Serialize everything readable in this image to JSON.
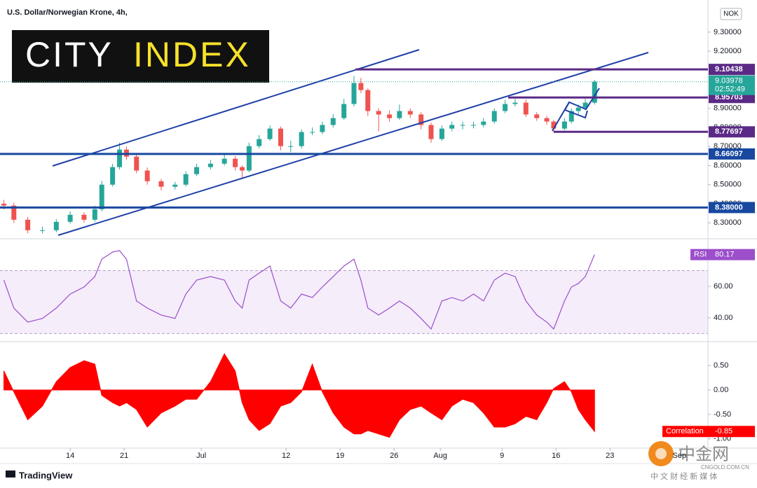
{
  "chart_data": [
    {
      "type": "candlestick",
      "title": "U.S. Dollar/Norwegian Krone, 4h,",
      "currency": "NOK",
      "x": [
        -8.6,
        -7.3,
        -5.5,
        -3.6,
        -1.8,
        0,
        1.8,
        3.2,
        4.1,
        5.5,
        6.4,
        7.3,
        8.6,
        10,
        11.8,
        13.6,
        15,
        16.4,
        18.2,
        20,
        21.4,
        22.3,
        23.2,
        24.5,
        25.9,
        27.3,
        28.6,
        30,
        31.4,
        32.7,
        34.1,
        35.5,
        36.8,
        37.7,
        38.6,
        40,
        41.4,
        42.7,
        44.1,
        45.5,
        46.8,
        48.2,
        49.5,
        50.9,
        52.3,
        53.6,
        55,
        56.4,
        57.7,
        59.1,
        60.5,
        61.8,
        62.7,
        64.1,
        65,
        65.9,
        66.8,
        68
      ],
      "open": [
        8.4,
        8.39,
        8.316,
        8.261,
        8.261,
        8.305,
        8.342,
        8.316,
        8.371,
        8.5,
        8.592,
        8.684,
        8.647,
        8.574,
        8.518,
        8.489,
        8.5,
        8.555,
        8.592,
        8.61,
        8.636,
        8.592,
        8.574,
        8.702,
        8.739,
        8.794,
        8.702,
        8.702,
        8.776,
        8.776,
        8.813,
        8.849,
        8.923,
        9.033,
        8.996,
        8.886,
        8.868,
        8.849,
        8.886,
        8.868,
        8.813,
        8.739,
        8.794,
        8.813,
        8.813,
        8.813,
        8.831,
        8.886,
        8.923,
        8.93,
        8.868,
        8.849,
        8.831,
        8.794,
        8.831,
        8.886,
        8.904,
        8.93
      ],
      "high": [
        8.42,
        8.405,
        8.33,
        8.28,
        8.32,
        8.36,
        8.355,
        8.39,
        8.52,
        8.61,
        8.72,
        8.7,
        8.66,
        8.59,
        8.53,
        8.515,
        8.57,
        8.61,
        8.63,
        8.66,
        8.65,
        8.6,
        8.72,
        8.76,
        8.81,
        8.805,
        8.73,
        8.79,
        8.8,
        8.83,
        8.87,
        8.95,
        9.07,
        9.06,
        9.005,
        8.9,
        8.89,
        8.92,
        8.9,
        8.88,
        8.825,
        8.81,
        8.83,
        8.83,
        8.83,
        8.85,
        8.9,
        8.945,
        8.95,
        8.945,
        8.88,
        8.86,
        8.84,
        8.85,
        8.9,
        8.92,
        8.95,
        9.05
      ],
      "low": [
        8.37,
        8.3,
        8.245,
        8.245,
        8.25,
        8.295,
        8.3,
        8.305,
        8.36,
        8.49,
        8.58,
        8.63,
        8.56,
        8.5,
        8.47,
        8.475,
        8.49,
        8.545,
        8.58,
        8.6,
        8.575,
        8.535,
        8.565,
        8.69,
        8.73,
        8.68,
        8.67,
        8.69,
        8.76,
        8.765,
        8.8,
        8.84,
        8.91,
        8.98,
        8.86,
        8.78,
        8.83,
        8.84,
        8.85,
        8.79,
        8.72,
        8.73,
        8.78,
        8.79,
        8.795,
        8.8,
        8.82,
        8.875,
        8.91,
        8.855,
        8.835,
        8.815,
        8.777,
        8.785,
        8.82,
        8.87,
        8.89,
        8.92
      ],
      "close": [
        8.39,
        8.316,
        8.261,
        8.261,
        8.305,
        8.342,
        8.316,
        8.371,
        8.5,
        8.592,
        8.684,
        8.647,
        8.574,
        8.518,
        8.489,
        8.5,
        8.555,
        8.592,
        8.61,
        8.636,
        8.592,
        8.574,
        8.702,
        8.739,
        8.794,
        8.702,
        8.702,
        8.776,
        8.776,
        8.813,
        8.849,
        8.923,
        9.033,
        8.996,
        8.886,
        8.868,
        8.849,
        8.886,
        8.868,
        8.813,
        8.739,
        8.794,
        8.813,
        8.813,
        8.813,
        8.831,
        8.886,
        8.923,
        8.93,
        8.868,
        8.849,
        8.831,
        8.794,
        8.831,
        8.886,
        8.904,
        8.93,
        9.04
      ],
      "colors": {
        "up": "#26a69a",
        "down": "#ef5350"
      },
      "xlim": [
        -9.1,
        82.7
      ],
      "ylim": [
        8.22,
        9.45
      ],
      "yticks": [
        {
          "value": 9.3,
          "label": "9.30000"
        },
        {
          "value": 9.2,
          "label": "9.20000"
        },
        {
          "value": 8.9,
          "label": "8.90000"
        },
        {
          "value": 8.8,
          "label": "8.80000"
        },
        {
          "value": 8.7,
          "label": "8.70000"
        },
        {
          "value": 8.6,
          "label": "8.60000"
        },
        {
          "value": 8.5,
          "label": "8.50000"
        },
        {
          "value": 8.4,
          "label": "8.40000"
        },
        {
          "value": 8.3,
          "label": "8.30000"
        }
      ],
      "levels": [
        {
          "value": 9.10438,
          "color": "#5b2a86",
          "start": 37
        },
        {
          "value": 8.95703,
          "color": "#5b2a86",
          "start": 56.8
        },
        {
          "value": 8.77697,
          "color": "#5b2a86",
          "start": 62.7
        },
        {
          "value": 8.66097,
          "color": "#1848a0"
        },
        {
          "value": 8.38,
          "label": "8.38000",
          "color": "#1848a0"
        }
      ],
      "last_price": {
        "value": 9.03978,
        "color": "#26a69a",
        "countdown": "02:52:49"
      },
      "grid": false
    },
    {
      "type": "line",
      "name": "RSI",
      "color": "#9c4ecb",
      "x": [
        -8.6,
        -7.3,
        -5.5,
        -3.6,
        -1.8,
        0,
        1.8,
        3.2,
        4.1,
        5.5,
        6.4,
        7.3,
        8.6,
        10,
        11.8,
        13.6,
        15,
        16.4,
        18.2,
        20,
        21.4,
        22.3,
        23.2,
        24.5,
        25.9,
        27.3,
        28.6,
        30,
        31.4,
        32.7,
        34.1,
        35.5,
        36.8,
        37.7,
        38.6,
        40,
        41.4,
        42.7,
        44.1,
        45.5,
        46.8,
        48.2,
        49.5,
        50.9,
        52.3,
        53.6,
        55,
        56.4,
        57.7,
        59.1,
        60.5,
        61.8,
        62.7,
        64.1,
        65,
        65.9,
        66.8,
        68
      ],
      "values": [
        64,
        46.2,
        37.3,
        39.6,
        46.2,
        55.1,
        59.6,
        66.2,
        77.3,
        81.8,
        82.7,
        77.3,
        50.7,
        46.2,
        41.8,
        39.6,
        55.1,
        64,
        66.2,
        64,
        50.7,
        46.2,
        64,
        68.4,
        72.9,
        50.7,
        46.2,
        55.1,
        52.9,
        59.6,
        66.2,
        72.9,
        77.3,
        64,
        46.2,
        41.8,
        46.2,
        50.7,
        46.2,
        39.6,
        32.9,
        50.7,
        52.9,
        50.7,
        55.1,
        50.7,
        64,
        68.4,
        66.2,
        50.7,
        41.8,
        37.3,
        32.9,
        50.7,
        59.6,
        61.8,
        66.2,
        80.17
      ],
      "band": [
        30,
        70
      ],
      "xlim": [
        -9.1,
        82.7
      ],
      "ylim": [
        25.3,
        89.8
      ],
      "yticks": [
        {
          "value": 60,
          "label": "60.00"
        },
        {
          "value": 40,
          "label": "40.00"
        }
      ]
    },
    {
      "type": "area",
      "name": "Correlation",
      "color": "#ff0000",
      "x": [
        -8.6,
        -7.3,
        -5.5,
        -3.6,
        -1.8,
        0,
        1.8,
        3.2,
        4.1,
        5.5,
        6.4,
        7.3,
        8.6,
        10,
        11.8,
        13.6,
        15,
        16.4,
        18.2,
        20,
        21.4,
        22.3,
        23.2,
        24.5,
        25.9,
        27.3,
        28.6,
        30,
        31.4,
        32.7,
        34.1,
        35.5,
        36.8,
        37.7,
        38.6,
        40,
        41.4,
        42.7,
        44.1,
        45.5,
        46.8,
        48.2,
        49.5,
        50.9,
        52.3,
        53.6,
        55,
        56.4,
        57.7,
        59.1,
        60.5,
        61.8,
        62.7,
        64.1,
        65,
        65.9,
        66.8,
        68
      ],
      "values": [
        0.39,
        -0.04,
        -0.61,
        -0.33,
        0.17,
        0.46,
        0.6,
        0.53,
        -0.11,
        -0.26,
        -0.33,
        -0.26,
        -0.4,
        -0.76,
        -0.47,
        -0.33,
        -0.19,
        -0.19,
        0.17,
        0.74,
        0.39,
        -0.26,
        -0.61,
        -0.83,
        -0.69,
        -0.33,
        -0.26,
        -0.04,
        0.53,
        -0.04,
        -0.47,
        -0.76,
        -0.9,
        -0.9,
        -0.83,
        -0.9,
        -0.97,
        -0.61,
        -0.4,
        -0.33,
        -0.47,
        -0.61,
        -0.33,
        -0.19,
        -0.26,
        -0.47,
        -0.76,
        -0.76,
        -0.69,
        -0.54,
        -0.61,
        -0.26,
        0.03,
        0.17,
        -0.04,
        -0.4,
        -0.61,
        -0.85
      ],
      "xlim": [
        -9.1,
        82.7
      ],
      "ylim": [
        -1.19,
        0.96
      ],
      "yticks": [
        {
          "value": 0.5,
          "label": "0.50"
        },
        {
          "value": 0,
          "label": "0.00"
        },
        {
          "value": -0.5,
          "label": "-0.50"
        },
        {
          "value": -1,
          "label": "-1.00"
        }
      ],
      "xticks": [
        {
          "value": 0,
          "label": "14"
        },
        {
          "value": 7,
          "label": "21"
        },
        {
          "value": 17,
          "label": "Jul"
        },
        {
          "value": 28,
          "label": "12"
        },
        {
          "value": 35,
          "label": "19"
        },
        {
          "value": 42,
          "label": "26"
        },
        {
          "value": 48,
          "label": "Aug"
        },
        {
          "value": 56,
          "label": "9"
        },
        {
          "value": 63,
          "label": "16"
        },
        {
          "value": 70,
          "label": "23"
        },
        {
          "value": 79,
          "label": "Sep"
        }
      ]
    }
  ],
  "branding": {
    "logo_left": "CITY",
    "logo_right": "INDEX",
    "footer": "TradingView",
    "watermark": "中金网",
    "watermark_url": "CNGOLD.COM.CN",
    "watermark_tagline": "中 文 财 经 新 媒 体"
  }
}
